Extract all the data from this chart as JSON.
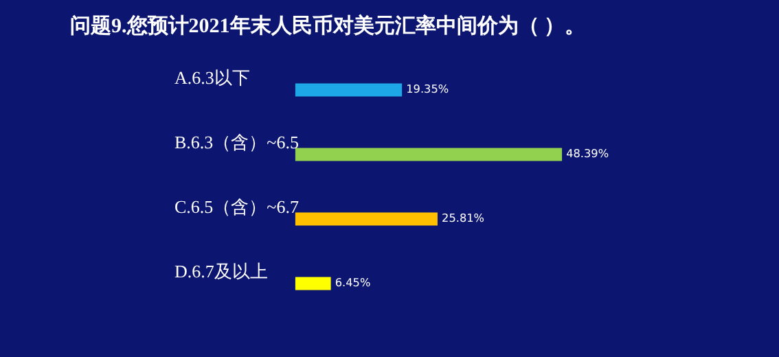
{
  "chart_data": {
    "type": "bar",
    "orientation": "horizontal",
    "title": "问题9.您预计2021年末人民币对美元汇率中间价为（ ）。",
    "categories": [
      "A.6.3以下",
      "B.6.3（含）~6.5",
      "C.6.5（含）~6.7",
      "D.6.7及以上"
    ],
    "values": [
      19.35,
      48.39,
      25.81,
      6.45
    ],
    "colors": [
      "#1ea7e6",
      "#92d050",
      "#ffc000",
      "#ffff00"
    ],
    "value_labels": [
      "19.35%",
      "48.39%",
      "25.81%",
      "6.45%"
    ],
    "tick_labels": "y"
  }
}
